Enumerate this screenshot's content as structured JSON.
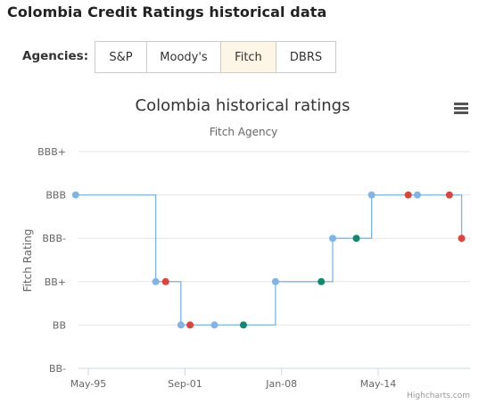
{
  "page": {
    "title": "Colombia Credit Ratings historical data"
  },
  "agencies": {
    "label": "Agencies:",
    "tabs": [
      {
        "label": "S&P",
        "active": false
      },
      {
        "label": "Moody's",
        "active": false
      },
      {
        "label": "Fitch",
        "active": true
      },
      {
        "label": "DBRS",
        "active": false
      }
    ]
  },
  "chart_data": {
    "type": "line",
    "step": true,
    "title": "Colombia historical ratings",
    "subtitle": "Fitch Agency",
    "ylabel": "Fitch Rating",
    "xlabel": "",
    "y_categories": [
      "BB-",
      "BB",
      "BB+",
      "BBB-",
      "BBB",
      "BBB+"
    ],
    "x_ticks": [
      "May-95",
      "Sep-01",
      "Jan-08",
      "May-14"
    ],
    "xlim": [
      1994.25,
      2018.25
    ],
    "grid": true,
    "legend": "none",
    "colors": {
      "line": "#7cb5ec",
      "rating_change": "#7cb5ec",
      "outlook_positive": "#0f8a6e",
      "outlook_negative": "#e0423a"
    },
    "points": [
      {
        "x": 1994.5,
        "y": "BBB",
        "kind": "rating_change"
      },
      {
        "x": 1999.75,
        "y": "BB+",
        "kind": "rating_change"
      },
      {
        "x": 2000.4,
        "y": "BB+",
        "kind": "outlook_negative"
      },
      {
        "x": 2001.4,
        "y": "BB",
        "kind": "rating_change"
      },
      {
        "x": 2002.0,
        "y": "BB",
        "kind": "outlook_negative"
      },
      {
        "x": 2003.6,
        "y": "BB",
        "kind": "rating_change"
      },
      {
        "x": 2005.5,
        "y": "BB",
        "kind": "outlook_positive"
      },
      {
        "x": 2007.6,
        "y": "BB+",
        "kind": "rating_change"
      },
      {
        "x": 2010.6,
        "y": "BB+",
        "kind": "outlook_positive"
      },
      {
        "x": 2011.35,
        "y": "BBB-",
        "kind": "rating_change"
      },
      {
        "x": 2012.9,
        "y": "BBB-",
        "kind": "outlook_positive"
      },
      {
        "x": 2013.9,
        "y": "BBB",
        "kind": "rating_change"
      },
      {
        "x": 2016.3,
        "y": "BBB",
        "kind": "outlook_negative"
      },
      {
        "x": 2016.9,
        "y": "BBB",
        "kind": "rating_change"
      },
      {
        "x": 2019.0,
        "y": "BBB",
        "kind": "outlook_negative"
      },
      {
        "x": 2019.8,
        "y": "BBB-",
        "kind": "outlook_negative"
      }
    ],
    "credits": "Highcharts.com"
  }
}
